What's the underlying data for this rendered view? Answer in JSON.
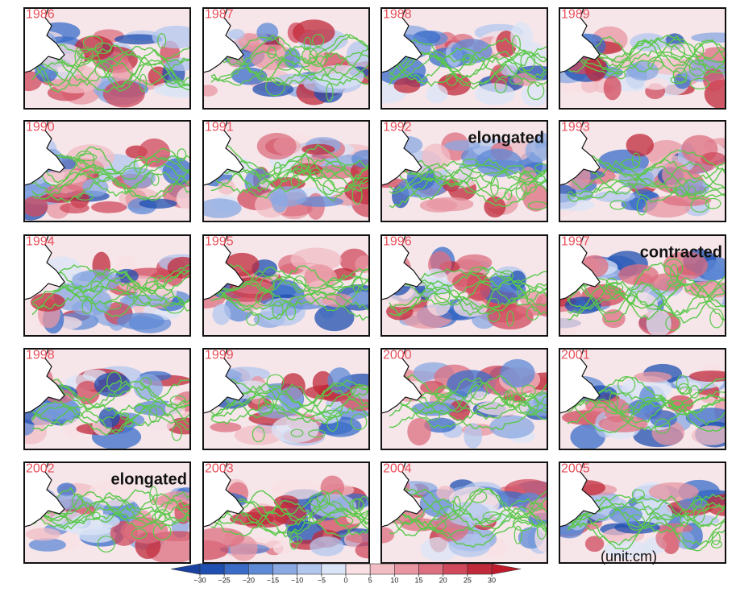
{
  "panels": [
    {
      "year": "1986"
    },
    {
      "year": "1987"
    },
    {
      "year": "1988"
    },
    {
      "year": "1989"
    },
    {
      "year": "1990"
    },
    {
      "year": "1991"
    },
    {
      "year": "1992",
      "note": "elongated"
    },
    {
      "year": "1993"
    },
    {
      "year": "1994"
    },
    {
      "year": "1995"
    },
    {
      "year": "1996"
    },
    {
      "year": "1997",
      "note": "contracted"
    },
    {
      "year": "1998"
    },
    {
      "year": "1999"
    },
    {
      "year": "2000"
    },
    {
      "year": "2001"
    },
    {
      "year": "2002",
      "note": "elongated"
    },
    {
      "year": "2003"
    },
    {
      "year": "2004"
    },
    {
      "year": "2005"
    }
  ],
  "colorbar": {
    "ticks": [
      {
        "value": -30,
        "label": "−30"
      },
      {
        "value": -25,
        "label": "−25"
      },
      {
        "value": -20,
        "label": "−20"
      },
      {
        "value": -15,
        "label": "−15"
      },
      {
        "value": -10,
        "label": "−10"
      },
      {
        "value": -5,
        "label": "−5"
      },
      0,
      5,
      10,
      15,
      20,
      25,
      30
    ],
    "colors": [
      "#1f4fb0",
      "#3a6cc8",
      "#5f8ad6",
      "#8aa8e2",
      "#b3c6ee",
      "#dbe4f6",
      "#f8e0e4",
      "#f1bcc4",
      "#e796a2",
      "#dc6f80",
      "#d04a5c",
      "#c02a3a"
    ],
    "extend_colors": [
      "#1a40a0",
      "#c01a2a"
    ],
    "unit": "(unit:cm)"
  }
}
